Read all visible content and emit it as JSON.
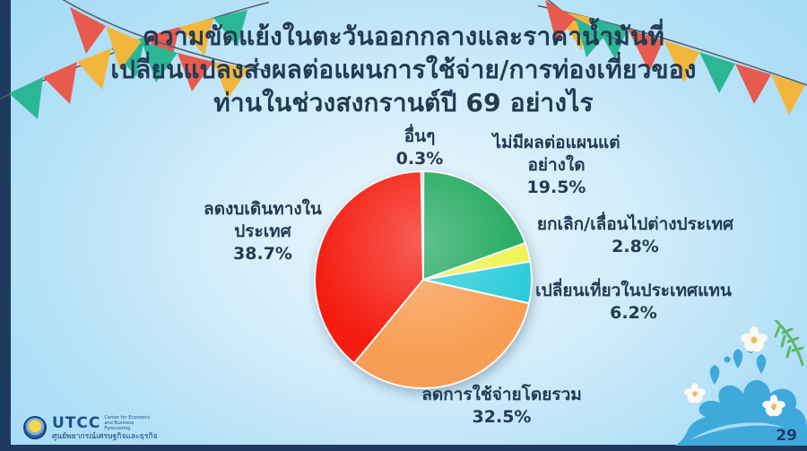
{
  "slide": {
    "title_lines": [
      "ความขัดแย้งในตะวันออกกลางและราคาน้ำมันที่",
      "เปลี่ยนแปลงส่งผลต่อแผนการใช้จ่าย/การท่องเที่ยวของ",
      "ท่านในช่วงสงกรานต์ปี 69 อย่างไร"
    ],
    "page_number": "29"
  },
  "footer": {
    "logo_abbr": "UTCC",
    "logo_sub_en": "Center for Economic and Business Forecasting",
    "logo_sub_th": "ศูนย์พยากรณ์เศรษฐกิจและธุรกิจ"
  },
  "chart_data": {
    "type": "pie",
    "title": "",
    "start_angle_deg": 0,
    "direction": "clockwise",
    "legend_position": "labels-around-pie",
    "slices": [
      {
        "label": "ไม่มีผลต่อแผนแต่อย่างใด",
        "label_lines": [
          "ไม่มีผลต่อแผนแต่",
          "อย่างใด"
        ],
        "value": 19.5,
        "value_label": "19.5%",
        "color": "#1ca75b"
      },
      {
        "label": "ยกเลิก/เลื่อนไปต่างประเทศ",
        "label_lines": [
          "ยกเลิก/เลื่อนไปต่างประเทศ"
        ],
        "value": 2.8,
        "value_label": "2.8%",
        "color": "#eef34c"
      },
      {
        "label": "เปลี่ยนเที่ยวในประเทศแทน",
        "label_lines": [
          "เปลี่ยนเที่ยวในประเทศแทน"
        ],
        "value": 6.2,
        "value_label": "6.2%",
        "color": "#2acbd9"
      },
      {
        "label": "ลดการใช้จ่ายโดยรวม",
        "label_lines": [
          "ลดการใช้จ่ายโดยรวม"
        ],
        "value": 32.5,
        "value_label": "32.5%",
        "color": "#f89e53"
      },
      {
        "label": "ลดงบเดินทางในประเทศ",
        "label_lines": [
          "ลดงบเดินทางใน",
          "ประเทศ"
        ],
        "value": 38.7,
        "value_label": "38.7%",
        "color": "#f41a0e"
      },
      {
        "label": "อื่นๆ",
        "label_lines": [
          "อื่นๆ"
        ],
        "value": 0.3,
        "value_label": "0.3%",
        "color": "#7c7b62"
      }
    ]
  },
  "theme": {
    "background_blue": "#a3daf6",
    "title_color": "#233a54",
    "navy_accent": "#1e3a5e",
    "flag_red": "#e8594e",
    "flag_teal": "#2bb795",
    "flag_yellow": "#f2b63c",
    "splash_blue": "#3fa9dc"
  }
}
